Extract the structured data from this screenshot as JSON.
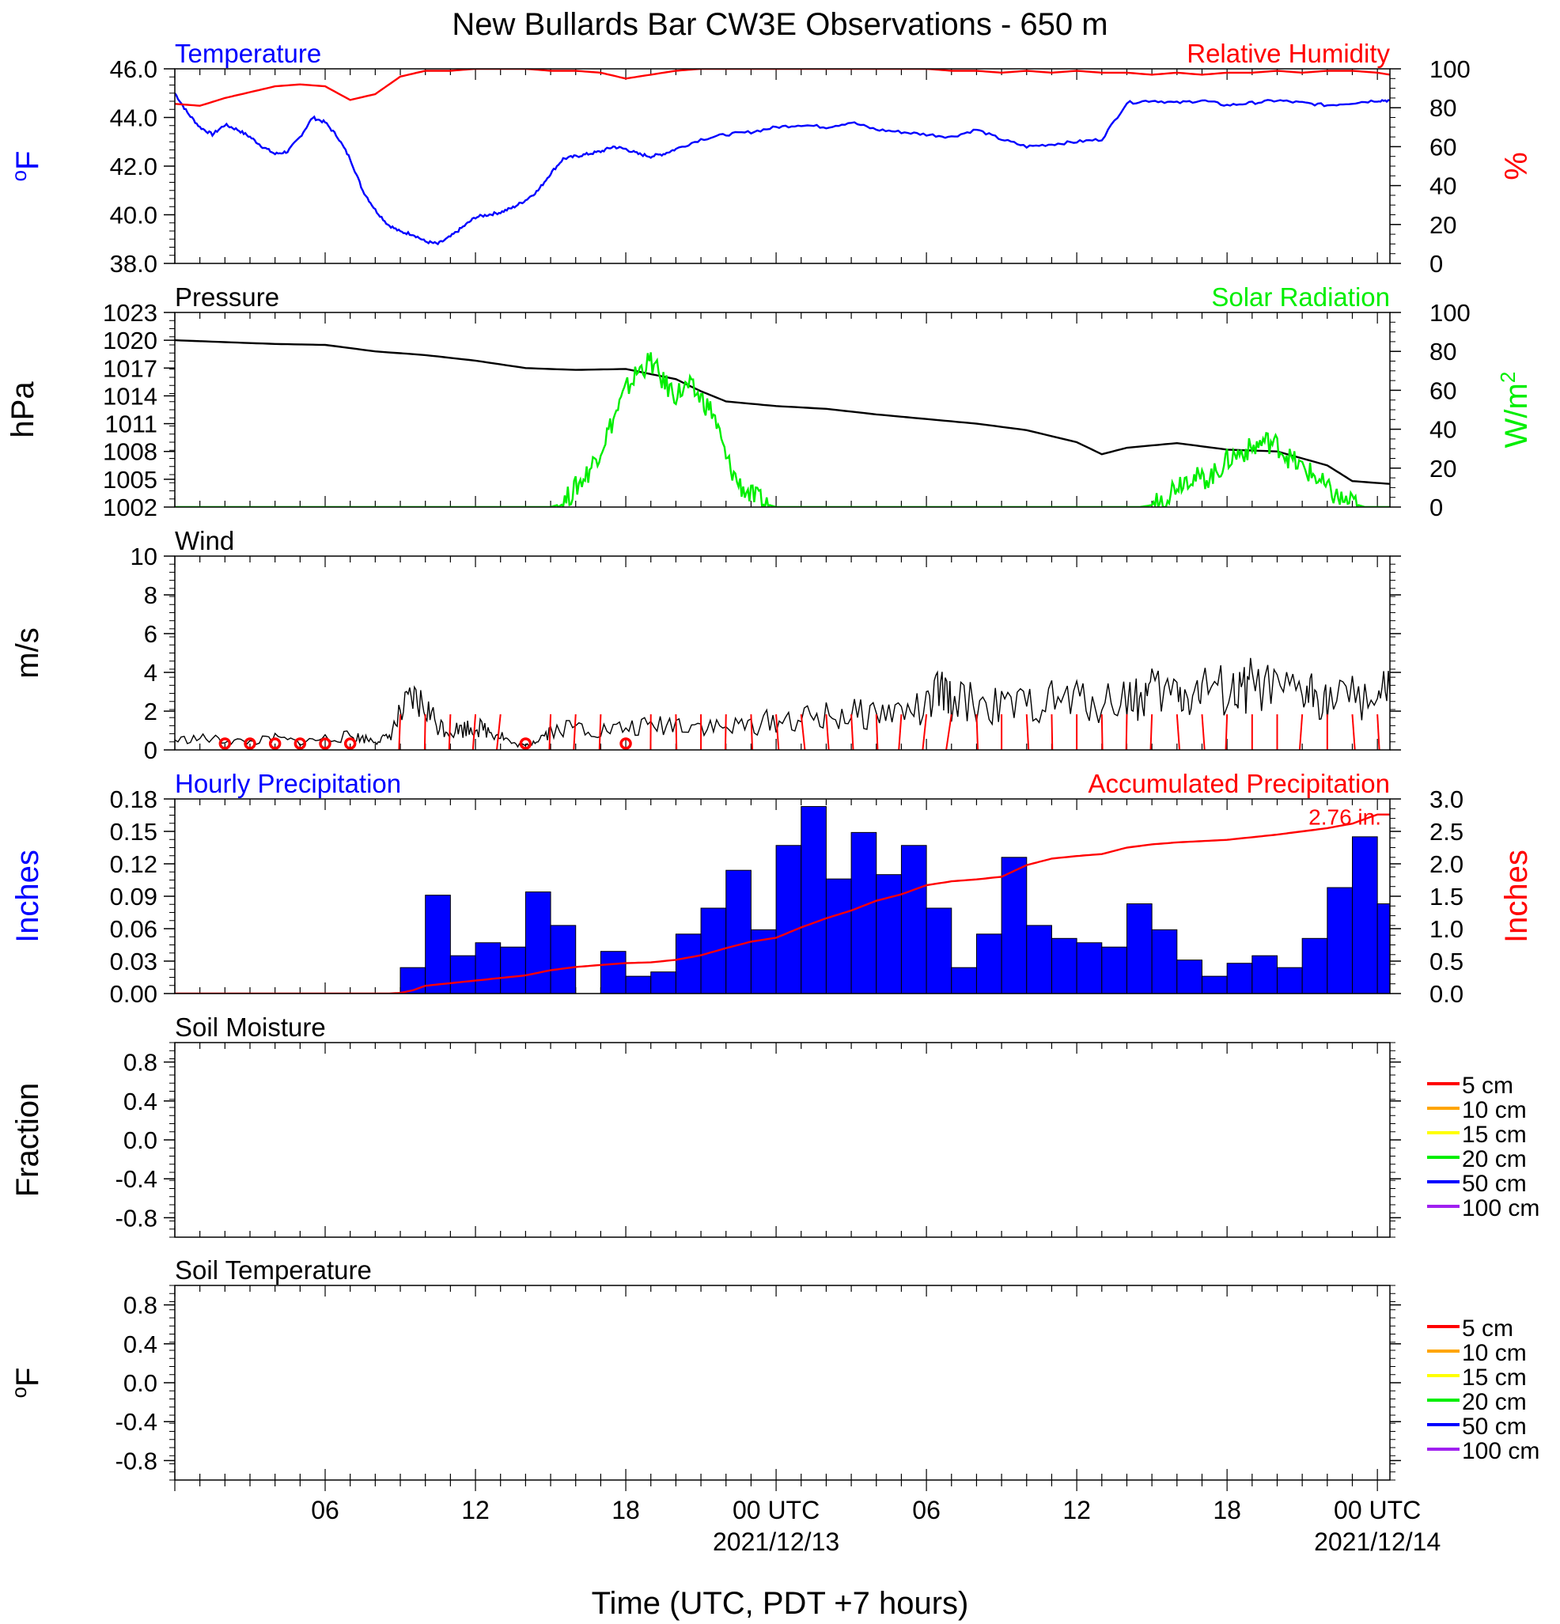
{
  "title": "New Bullards Bar CW3E Observations - 650 m",
  "xaxis": {
    "label": "Time (UTC, PDT +7 hours)",
    "ticks": [
      {
        "hours": 6,
        "label": "06",
        "date": ""
      },
      {
        "hours": 12,
        "label": "12",
        "date": ""
      },
      {
        "hours": 18,
        "label": "18",
        "date": ""
      },
      {
        "hours": 24,
        "label": "00 UTC",
        "date": "2021/12/13"
      },
      {
        "hours": 30,
        "label": "06",
        "date": ""
      },
      {
        "hours": 36,
        "label": "12",
        "date": ""
      },
      {
        "hours": 42,
        "label": "18",
        "date": ""
      },
      {
        "hours": 48,
        "label": "00 UTC",
        "date": "2021/12/14"
      }
    ]
  },
  "colors": {
    "blue": "#0000ff",
    "red": "#ff0000",
    "green": "#00ee00",
    "black": "#000000",
    "orange": "#ffa500",
    "yellow": "#ffff00",
    "purple": "#a020f0"
  },
  "chart_data": [
    {
      "type": "line",
      "left_title": "Temperature",
      "right_title": "Relative Humidity",
      "ylabel": "oF",
      "y2label": "%",
      "ylim": [
        38,
        46
      ],
      "yticks": [
        "38.0",
        "40.0",
        "42.0",
        "44.0",
        "46.0"
      ],
      "y2lim": [
        0,
        100
      ],
      "y2ticks": [
        "0",
        "20",
        "40",
        "60",
        "80",
        "100"
      ],
      "series": [
        {
          "name": "Temperature",
          "axis": "left",
          "color": "#0000ff",
          "x": [
            0,
            0.5,
            1,
            1.5,
            2,
            2.5,
            3,
            3.5,
            4,
            4.5,
            5,
            5.5,
            6,
            6.5,
            7,
            7.5,
            8,
            8.5,
            9,
            9.5,
            10,
            10.5,
            11,
            11.5,
            12,
            12.5,
            13,
            13.5,
            14,
            14.5,
            15,
            15.5,
            16,
            16.5,
            17,
            17.5,
            18,
            18.5,
            19,
            19.5,
            20,
            21,
            22,
            23,
            24,
            25,
            26,
            27,
            28,
            29,
            30,
            31,
            32,
            33,
            34,
            35,
            36,
            37,
            38,
            39,
            40,
            41,
            42,
            43,
            44,
            45,
            46,
            47,
            48,
            48.5
          ],
          "y": [
            45.0,
            44.2,
            43.6,
            43.3,
            43.7,
            43.5,
            43.2,
            42.8,
            42.5,
            42.6,
            43.2,
            44.0,
            43.8,
            43.2,
            42.3,
            41.0,
            40.2,
            39.6,
            39.3,
            39.2,
            38.9,
            38.8,
            39.1,
            39.5,
            39.9,
            40.0,
            40.1,
            40.3,
            40.6,
            41.0,
            41.7,
            42.3,
            42.4,
            42.5,
            42.6,
            42.8,
            42.7,
            42.5,
            42.4,
            42.5,
            42.7,
            43.1,
            43.3,
            43.4,
            43.6,
            43.7,
            43.6,
            43.8,
            43.5,
            43.4,
            43.3,
            43.2,
            43.5,
            43.1,
            42.8,
            42.9,
            43.0,
            43.1,
            44.6,
            44.7,
            44.6,
            44.7,
            44.5,
            44.6,
            44.7,
            44.6,
            44.5,
            44.6,
            44.7,
            44.7
          ]
        },
        {
          "name": "Relative Humidity",
          "axis": "right",
          "color": "#ff0000",
          "x": [
            0,
            1,
            2,
            3,
            4,
            5,
            6,
            7,
            8,
            9,
            10,
            11,
            12,
            13,
            14,
            15,
            16,
            17,
            18,
            19,
            20,
            21,
            22,
            23,
            24,
            25,
            26,
            27,
            28,
            29,
            30,
            31,
            32,
            33,
            34,
            35,
            36,
            37,
            38,
            39,
            40,
            41,
            42,
            43,
            44,
            45,
            46,
            47,
            48,
            48.5
          ],
          "y": [
            82,
            81,
            85,
            88,
            91,
            92,
            91,
            84,
            87,
            96,
            99,
            99,
            100,
            100,
            100,
            99,
            99,
            98,
            95,
            97,
            99,
            100,
            100,
            100,
            100,
            100,
            100,
            100,
            100,
            100,
            100,
            99,
            99,
            98,
            99,
            98,
            99,
            98,
            98,
            97,
            98,
            97,
            98,
            98,
            99,
            98,
            99,
            99,
            98,
            97
          ]
        }
      ]
    },
    {
      "type": "line",
      "left_title": "Pressure",
      "right_title": "Solar Radiation",
      "ylabel": "hPa",
      "y2label": "W/m2",
      "ylim": [
        1002,
        1023
      ],
      "yticks": [
        "1002",
        "1005",
        "1008",
        "1011",
        "1014",
        "1017",
        "1020",
        "1023"
      ],
      "y2lim": [
        0,
        100
      ],
      "y2ticks": [
        "0",
        "20",
        "40",
        "60",
        "80",
        "100"
      ],
      "series": [
        {
          "name": "Pressure",
          "axis": "left",
          "color": "#000000",
          "x": [
            0,
            2,
            4,
            6,
            8,
            10,
            12,
            14,
            16,
            18,
            20,
            21,
            22,
            24,
            26,
            28,
            30,
            32,
            34,
            36,
            37,
            38,
            40,
            42,
            44,
            46,
            47,
            48.5
          ],
          "y": [
            1020.0,
            1019.8,
            1019.6,
            1019.5,
            1018.8,
            1018.4,
            1017.8,
            1017.0,
            1016.8,
            1016.9,
            1015.8,
            1014.5,
            1013.4,
            1012.9,
            1012.6,
            1012.0,
            1011.5,
            1011.0,
            1010.3,
            1009.0,
            1007.7,
            1008.4,
            1008.9,
            1008.2,
            1008.0,
            1006.5,
            1004.8,
            1004.5
          ]
        },
        {
          "name": "Solar Radiation",
          "axis": "right",
          "color": "#00ee00",
          "x": [
            0,
            14.5,
            15.0,
            15.5,
            16.0,
            16.5,
            17.0,
            17.5,
            18.0,
            18.5,
            19.0,
            19.5,
            20.0,
            20.5,
            21.0,
            21.5,
            22.0,
            22.5,
            23.0,
            23.5,
            24.0,
            24.5,
            38.5,
            39.0,
            39.5,
            40.0,
            40.5,
            41.0,
            41.5,
            42.0,
            42.5,
            43.0,
            43.5,
            44.0,
            44.5,
            45.0,
            45.5,
            46.0,
            46.5,
            47.0,
            47.5,
            48.5
          ],
          "y": [
            0,
            0,
            0,
            2,
            10,
            18,
            30,
            45,
            60,
            70,
            75,
            64,
            58,
            62,
            56,
            48,
            25,
            12,
            6,
            2,
            0,
            0,
            0,
            1,
            5,
            12,
            16,
            14,
            17,
            24,
            28,
            30,
            34,
            32,
            25,
            20,
            16,
            9,
            4,
            2,
            0,
            0
          ]
        }
      ]
    },
    {
      "type": "line",
      "left_title": "Wind",
      "ylabel": "m/s",
      "ylim": [
        0,
        10
      ],
      "yticks": [
        "0",
        "2",
        "4",
        "6",
        "8",
        "10"
      ],
      "series": [
        {
          "name": "Wind",
          "color": "#000000",
          "x": [
            0,
            1,
            2,
            3,
            4,
            5,
            6,
            7,
            7.5,
            8,
            8.5,
            9,
            9.5,
            10,
            10.5,
            11,
            11.5,
            12,
            12.5,
            13,
            13.5,
            14,
            14.5,
            15,
            16,
            17,
            18,
            19,
            20,
            21,
            22,
            23,
            24,
            25,
            26,
            27,
            28,
            29,
            30,
            30.5,
            31,
            32,
            33,
            34,
            35,
            36,
            37,
            38,
            38.5,
            39,
            40,
            40.5,
            41,
            42,
            42.5,
            43,
            44,
            45,
            45.5,
            46,
            47,
            48,
            48.5
          ],
          "y": [
            0.5,
            0.6,
            0.5,
            0.4,
            0.6,
            0.4,
            0.6,
            0.7,
            0.6,
            0.5,
            0.6,
            1.8,
            2.5,
            2.2,
            1.3,
            1.0,
            1.1,
            1.2,
            1.0,
            0.8,
            0.3,
            0.2,
            0.6,
            1.0,
            1.2,
            1.0,
            1.1,
            1.2,
            1.4,
            1.3,
            1.1,
            1.3,
            1.5,
            1.6,
            1.7,
            1.8,
            1.9,
            2.0,
            2.1,
            3.0,
            2.6,
            2.4,
            2.2,
            2.3,
            2.5,
            2.6,
            2.4,
            2.8,
            2.6,
            3.0,
            2.9,
            2.8,
            3.1,
            3.0,
            2.8,
            3.4,
            2.9,
            2.8,
            3.0,
            2.6,
            2.7,
            2.8,
            2.9
          ]
        },
        {
          "name": "Wind Direction",
          "color": "#ff0000",
          "x": [
            2,
            3,
            4,
            5,
            6,
            7,
            9,
            10,
            11,
            12,
            13,
            14,
            15,
            16,
            17,
            18,
            19,
            20,
            21,
            22,
            23,
            24,
            25,
            26,
            27,
            28,
            29,
            30,
            31,
            32,
            33,
            34,
            35,
            36,
            37,
            38,
            39,
            40,
            41,
            42,
            43,
            44,
            45,
            46,
            47,
            48
          ],
          "dir_deg": [
            null,
            null,
            null,
            null,
            null,
            null,
            350,
            355,
            350,
            340,
            330,
            null,
            350,
            345,
            350,
            null,
            358,
            5,
            0,
            355,
            10,
            20,
            30,
            20,
            15,
            10,
            340,
            330,
            315,
            10,
            0,
            15,
            5,
            0,
            5,
            355,
            350,
            20,
            20,
            350,
            0,
            0,
            340,
            0,
            20,
            15
          ]
        }
      ]
    },
    {
      "type": "bar",
      "left_title": "Hourly Precipitation",
      "right_title": "Accumulated Precipitation",
      "ylabel": "Inches",
      "y2label": "Inches",
      "ylim": [
        0,
        0.18
      ],
      "yticks": [
        "0.00",
        "0.03",
        "0.06",
        "0.09",
        "0.12",
        "0.15",
        "0.18"
      ],
      "y2lim": [
        0,
        3.0
      ],
      "y2ticks": [
        "0.0",
        "0.5",
        "1.0",
        "1.5",
        "2.0",
        "2.5",
        "3.0"
      ],
      "accum_label": "2.76 in.",
      "series": [
        {
          "name": "Hourly Precipitation",
          "axis": "left",
          "color": "#0000ff",
          "x": [
            8.5,
            9.5,
            10.5,
            11.5,
            12.5,
            13.5,
            14.5,
            15.5,
            16.5,
            17.5,
            18.5,
            19.5,
            20.5,
            21.5,
            22.5,
            23.5,
            24.5,
            25.5,
            26.5,
            27.5,
            28.5,
            29.5,
            30.5,
            31.5,
            32.5,
            33.5,
            34.5,
            35.5,
            36.5,
            37.5,
            38.5,
            39.5,
            40.5,
            41.5,
            42.5,
            43.5,
            44.5,
            45.5,
            46.5,
            47.5,
            48.5
          ],
          "values": [
            0.0,
            0.024,
            0.091,
            0.035,
            0.047,
            0.043,
            0.094,
            0.063,
            0.0,
            0.039,
            0.016,
            0.02,
            0.055,
            0.079,
            0.114,
            0.059,
            0.137,
            0.173,
            0.106,
            0.149,
            0.11,
            0.137,
            0.079,
            0.024,
            0.055,
            0.126,
            0.063,
            0.051,
            0.047,
            0.043,
            0.083,
            0.059,
            0.031,
            0.016,
            0.028,
            0.035,
            0.024,
            0.051,
            0.098,
            0.145,
            0.083
          ]
        },
        {
          "name": "Accumulated Precipitation",
          "axis": "right",
          "color": "#ff0000",
          "x": [
            0,
            8.5,
            9,
            9.5,
            10,
            11,
            12,
            13,
            14,
            15,
            16,
            17,
            18,
            19,
            20,
            21,
            22,
            23,
            24,
            25,
            26,
            27,
            28,
            29,
            30,
            31,
            32,
            33,
            34,
            35,
            36,
            37,
            38,
            39,
            40,
            41,
            42,
            43,
            44,
            45,
            46,
            47,
            48,
            48.5
          ],
          "y": [
            0,
            0,
            0.01,
            0.05,
            0.12,
            0.16,
            0.2,
            0.24,
            0.28,
            0.36,
            0.41,
            0.44,
            0.47,
            0.48,
            0.52,
            0.59,
            0.7,
            0.8,
            0.86,
            1.02,
            1.16,
            1.28,
            1.43,
            1.53,
            1.67,
            1.73,
            1.76,
            1.8,
            1.98,
            2.08,
            2.12,
            2.15,
            2.25,
            2.3,
            2.33,
            2.35,
            2.37,
            2.41,
            2.45,
            2.5,
            2.55,
            2.62,
            2.76,
            2.76
          ]
        }
      ]
    },
    {
      "type": "line",
      "left_title": "Soil Moisture",
      "ylabel": "Fraction",
      "ylim": [
        -1,
        1
      ],
      "yticks": [
        "-0.8",
        "-0.4",
        "0.0",
        "0.4",
        "0.8"
      ],
      "legend_position": "right",
      "legend": [
        {
          "name": "5 cm",
          "color": "#ff0000"
        },
        {
          "name": "10 cm",
          "color": "#ffa500"
        },
        {
          "name": "15 cm",
          "color": "#ffff00"
        },
        {
          "name": "20 cm",
          "color": "#00ee00"
        },
        {
          "name": "50 cm",
          "color": "#0000ff"
        },
        {
          "name": "100 cm",
          "color": "#a020f0"
        }
      ],
      "series": []
    },
    {
      "type": "line",
      "left_title": "Soil Temperature",
      "ylabel": "oF",
      "ylim": [
        -1,
        1
      ],
      "yticks": [
        "-0.8",
        "-0.4",
        "0.0",
        "0.4",
        "0.8"
      ],
      "legend_position": "right",
      "legend": [
        {
          "name": "5 cm",
          "color": "#ff0000"
        },
        {
          "name": "10 cm",
          "color": "#ffa500"
        },
        {
          "name": "15 cm",
          "color": "#ffff00"
        },
        {
          "name": "20 cm",
          "color": "#00ee00"
        },
        {
          "name": "50 cm",
          "color": "#0000ff"
        },
        {
          "name": "100 cm",
          "color": "#a020f0"
        }
      ],
      "series": []
    }
  ]
}
